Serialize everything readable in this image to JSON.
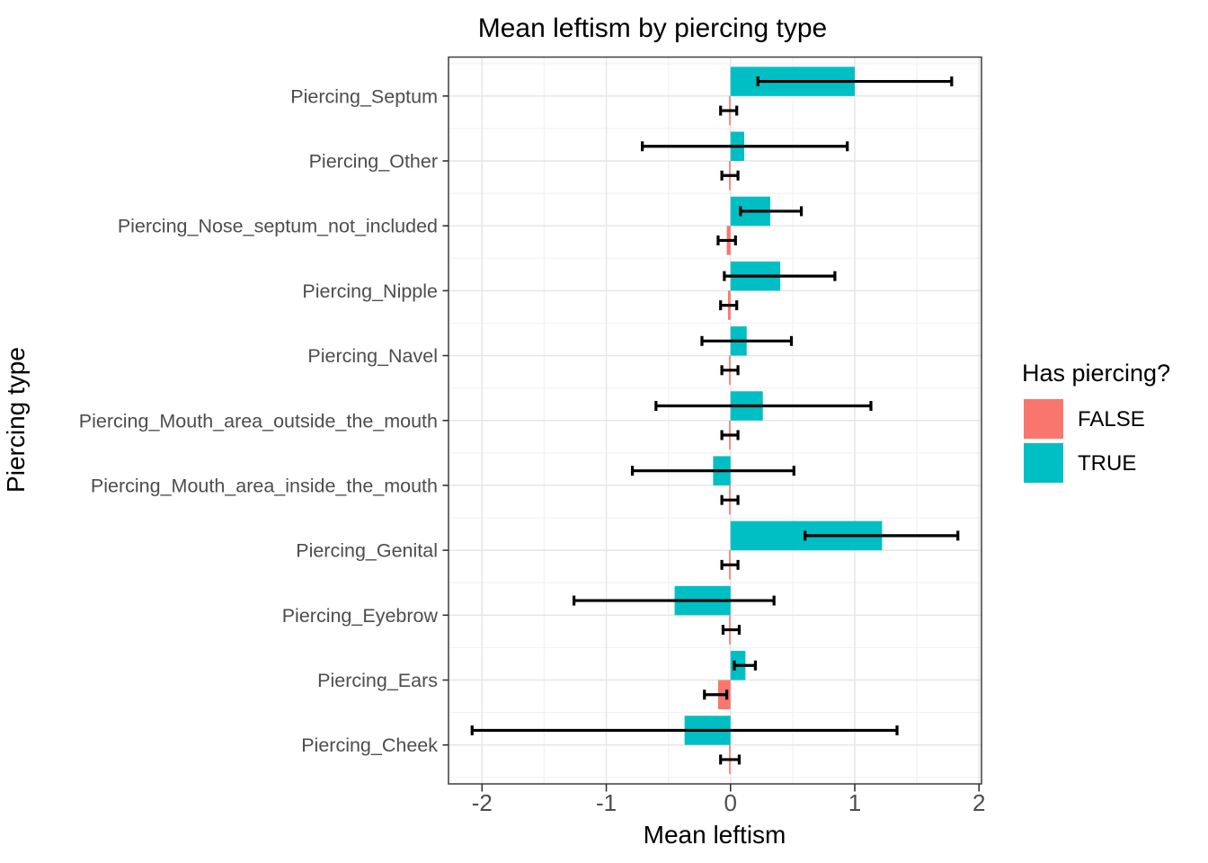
{
  "title": "Mean leftism by piercing type",
  "axes": {
    "x_label": "Mean leftism",
    "y_label": "Piercing type"
  },
  "legend": {
    "title": "Has piercing?",
    "items": [
      {
        "label": "FALSE",
        "color": "#F8766D"
      },
      {
        "label": "TRUE",
        "color": "#00BFC4"
      }
    ]
  },
  "chart_data": {
    "type": "bar",
    "orientation": "horizontal",
    "title": "Mean leftism by piercing type",
    "xlabel": "Mean leftism",
    "ylabel": "Piercing type",
    "xlim": [
      -2.27,
      2.02
    ],
    "x_major_ticks": [
      -2,
      -1,
      0,
      1,
      2
    ],
    "x_minor_gridlines": [
      -1.5,
      -0.5,
      0.5,
      1.5
    ],
    "grid": "major+minor",
    "legend_position": "right",
    "legend_title": "Has piercing?",
    "error_bars": true,
    "categories": [
      "Piercing_Septum",
      "Piercing_Other",
      "Piercing_Nose_septum_not_included",
      "Piercing_Nipple",
      "Piercing_Navel",
      "Piercing_Mouth_area_outside_the_mouth",
      "Piercing_Mouth_area_inside_the_mouth",
      "Piercing_Genital",
      "Piercing_Eyebrow",
      "Piercing_Ears",
      "Piercing_Cheek"
    ],
    "series": [
      {
        "name": "TRUE",
        "color": "#00BFC4",
        "position": "above",
        "values": [
          1.0,
          0.11,
          0.32,
          0.4,
          0.13,
          0.26,
          -0.14,
          1.22,
          -0.45,
          0.12,
          -0.37
        ],
        "ci_low": [
          0.22,
          -0.71,
          0.08,
          -0.05,
          -0.23,
          -0.6,
          -0.79,
          0.6,
          -1.26,
          0.03,
          -2.08
        ],
        "ci_high": [
          1.78,
          0.94,
          0.57,
          0.84,
          0.49,
          1.13,
          0.51,
          1.83,
          0.35,
          0.2,
          1.34
        ]
      },
      {
        "name": "FALSE",
        "color": "#F8766D",
        "position": "below",
        "values": [
          -0.01,
          -0.01,
          -0.03,
          -0.02,
          -0.01,
          -0.01,
          -0.01,
          -0.01,
          -0.01,
          -0.1,
          -0.01
        ],
        "ci_low": [
          -0.08,
          -0.07,
          -0.1,
          -0.08,
          -0.07,
          -0.07,
          -0.07,
          -0.07,
          -0.06,
          -0.21,
          -0.08
        ],
        "ci_high": [
          0.05,
          0.06,
          0.04,
          0.05,
          0.06,
          0.06,
          0.06,
          0.06,
          0.07,
          -0.03,
          0.07
        ]
      }
    ]
  }
}
